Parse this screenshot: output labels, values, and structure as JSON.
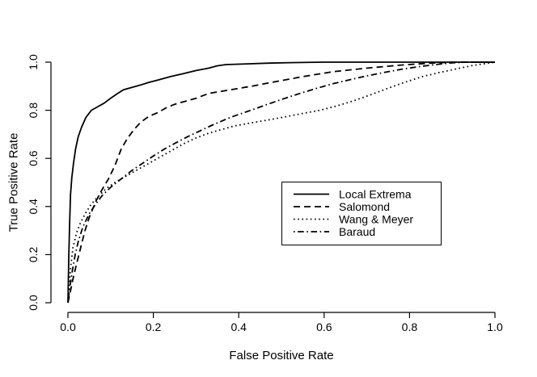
{
  "chart_data": {
    "type": "line",
    "title": "",
    "xlabel": "False Positive Rate",
    "ylabel": "True Positive Rate",
    "xlim": [
      0.0,
      1.0
    ],
    "ylim": [
      0.0,
      1.0
    ],
    "xticks": [
      "0.0",
      "0.2",
      "0.4",
      "0.6",
      "0.8",
      "1.0"
    ],
    "yticks": [
      "0.0",
      "0.2",
      "0.4",
      "0.6",
      "0.8",
      "1.0"
    ],
    "grid": false,
    "background_color": "#ffffff",
    "axis_color": "#000000",
    "legend_position": "inside-right-center",
    "legend_border": true,
    "series": [
      {
        "name": "Local Extrema",
        "style": "solid",
        "color": "#000000",
        "points": [
          [
            0,
            0
          ],
          [
            0.002,
            0.2
          ],
          [
            0.004,
            0.33
          ],
          [
            0.006,
            0.45
          ],
          [
            0.009,
            0.52
          ],
          [
            0.013,
            0.58
          ],
          [
            0.018,
            0.64
          ],
          [
            0.024,
            0.69
          ],
          [
            0.032,
            0.73
          ],
          [
            0.042,
            0.77
          ],
          [
            0.055,
            0.8
          ],
          [
            0.07,
            0.815
          ],
          [
            0.085,
            0.83
          ],
          [
            0.1,
            0.85
          ],
          [
            0.115,
            0.868
          ],
          [
            0.13,
            0.885
          ],
          [
            0.15,
            0.895
          ],
          [
            0.17,
            0.905
          ],
          [
            0.19,
            0.916
          ],
          [
            0.21,
            0.925
          ],
          [
            0.24,
            0.94
          ],
          [
            0.27,
            0.952
          ],
          [
            0.3,
            0.965
          ],
          [
            0.33,
            0.975
          ],
          [
            0.35,
            0.985
          ],
          [
            0.37,
            0.99
          ],
          [
            0.42,
            0.993
          ],
          [
            0.47,
            0.996
          ],
          [
            0.52,
            0.998
          ],
          [
            0.6,
            1
          ],
          [
            1,
            1
          ]
        ]
      },
      {
        "name": "Salomond",
        "style": "dashed",
        "color": "#000000",
        "points": [
          [
            0,
            0
          ],
          [
            0.005,
            0.04
          ],
          [
            0.012,
            0.1
          ],
          [
            0.02,
            0.16
          ],
          [
            0.03,
            0.23
          ],
          [
            0.04,
            0.3
          ],
          [
            0.05,
            0.355
          ],
          [
            0.065,
            0.42
          ],
          [
            0.08,
            0.47
          ],
          [
            0.095,
            0.515
          ],
          [
            0.11,
            0.57
          ],
          [
            0.125,
            0.64
          ],
          [
            0.14,
            0.685
          ],
          [
            0.155,
            0.72
          ],
          [
            0.17,
            0.75
          ],
          [
            0.19,
            0.775
          ],
          [
            0.21,
            0.79
          ],
          [
            0.23,
            0.81
          ],
          [
            0.25,
            0.825
          ],
          [
            0.28,
            0.84
          ],
          [
            0.3,
            0.85
          ],
          [
            0.33,
            0.87
          ],
          [
            0.38,
            0.885
          ],
          [
            0.43,
            0.9
          ],
          [
            0.49,
            0.92
          ],
          [
            0.55,
            0.94
          ],
          [
            0.62,
            0.96
          ],
          [
            0.7,
            0.975
          ],
          [
            0.78,
            0.988
          ],
          [
            0.85,
            0.996
          ],
          [
            0.9,
            1
          ],
          [
            1,
            1
          ]
        ]
      },
      {
        "name": "Wang & Meyer",
        "style": "dotted",
        "color": "#000000",
        "points": [
          [
            0,
            0
          ],
          [
            0.003,
            0.08
          ],
          [
            0.007,
            0.16
          ],
          [
            0.012,
            0.23
          ],
          [
            0.02,
            0.29
          ],
          [
            0.03,
            0.335
          ],
          [
            0.042,
            0.375
          ],
          [
            0.055,
            0.41
          ],
          [
            0.07,
            0.44
          ],
          [
            0.09,
            0.475
          ],
          [
            0.11,
            0.5
          ],
          [
            0.135,
            0.525
          ],
          [
            0.16,
            0.55
          ],
          [
            0.185,
            0.575
          ],
          [
            0.21,
            0.6
          ],
          [
            0.24,
            0.63
          ],
          [
            0.27,
            0.66
          ],
          [
            0.3,
            0.685
          ],
          [
            0.33,
            0.705
          ],
          [
            0.36,
            0.72
          ],
          [
            0.39,
            0.735
          ],
          [
            0.43,
            0.748
          ],
          [
            0.47,
            0.76
          ],
          [
            0.51,
            0.773
          ],
          [
            0.55,
            0.787
          ],
          [
            0.59,
            0.8
          ],
          [
            0.63,
            0.818
          ],
          [
            0.67,
            0.84
          ],
          [
            0.71,
            0.865
          ],
          [
            0.75,
            0.892
          ],
          [
            0.79,
            0.917
          ],
          [
            0.83,
            0.94
          ],
          [
            0.87,
            0.957
          ],
          [
            0.91,
            0.972
          ],
          [
            0.95,
            0.987
          ],
          [
            1,
            1
          ]
        ]
      },
      {
        "name": "Baraud",
        "style": "dashdot",
        "color": "#000000",
        "points": [
          [
            0,
            0
          ],
          [
            0.004,
            0.06
          ],
          [
            0.01,
            0.13
          ],
          [
            0.017,
            0.2
          ],
          [
            0.025,
            0.26
          ],
          [
            0.035,
            0.315
          ],
          [
            0.05,
            0.37
          ],
          [
            0.065,
            0.41
          ],
          [
            0.08,
            0.445
          ],
          [
            0.1,
            0.48
          ],
          [
            0.125,
            0.515
          ],
          [
            0.15,
            0.55
          ],
          [
            0.175,
            0.58
          ],
          [
            0.2,
            0.61
          ],
          [
            0.225,
            0.638
          ],
          [
            0.25,
            0.662
          ],
          [
            0.28,
            0.69
          ],
          [
            0.31,
            0.715
          ],
          [
            0.34,
            0.74
          ],
          [
            0.38,
            0.77
          ],
          [
            0.42,
            0.795
          ],
          [
            0.46,
            0.82
          ],
          [
            0.5,
            0.845
          ],
          [
            0.54,
            0.868
          ],
          [
            0.58,
            0.89
          ],
          [
            0.62,
            0.91
          ],
          [
            0.66,
            0.927
          ],
          [
            0.7,
            0.943
          ],
          [
            0.74,
            0.957
          ],
          [
            0.78,
            0.97
          ],
          [
            0.82,
            0.981
          ],
          [
            0.86,
            0.99
          ],
          [
            0.9,
            0.997
          ],
          [
            0.93,
            1
          ],
          [
            1,
            1
          ]
        ]
      }
    ]
  }
}
